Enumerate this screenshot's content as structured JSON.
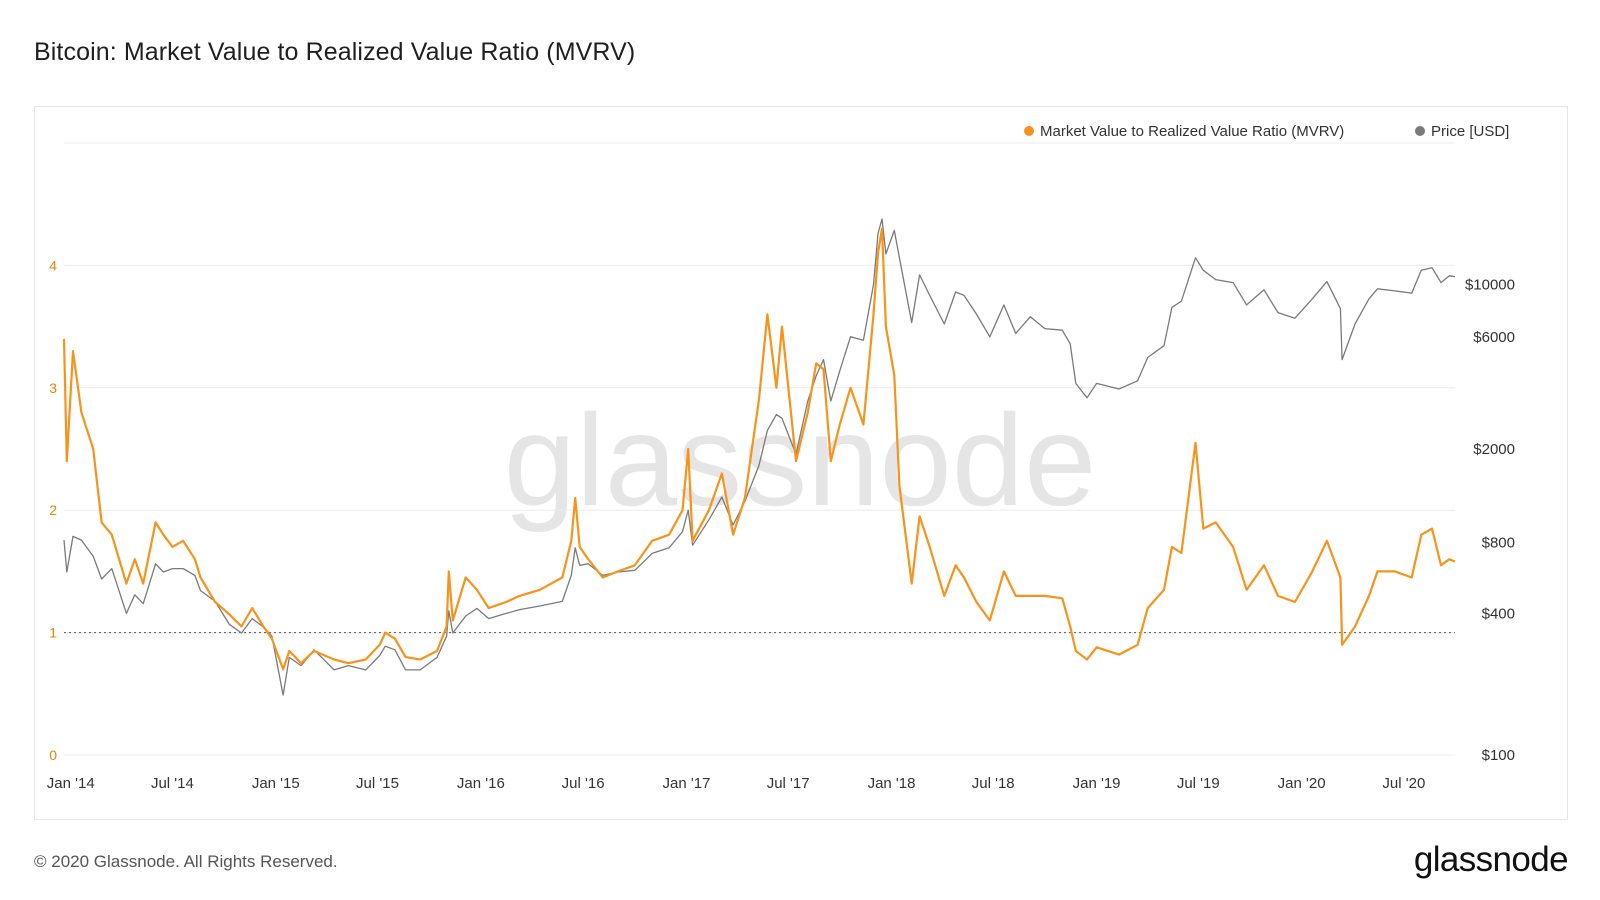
{
  "page": {
    "title": "Bitcoin: Market Value to Realized Value Ratio (MVRV)",
    "footer": "© 2020 Glassnode. All Rights Reserved.",
    "brand": "glassnode",
    "watermark": "glassnode"
  },
  "colors": {
    "mvrv": "#f7931a",
    "price": "#7a7a7a",
    "grid": "#ececec",
    "reference": "#555555"
  },
  "chart_data": {
    "type": "line",
    "title": "Bitcoin: Market Value to Realized Value Ratio (MVRV)",
    "legend_position": "top-right",
    "grid": true,
    "x_ticks": [
      "Jan '14",
      "Jul '14",
      "Jan '15",
      "Jul '15",
      "Jan '16",
      "Jul '16",
      "Jan '17",
      "Jul '17",
      "Jan '18",
      "Jul '18",
      "Jan '19",
      "Jul '19",
      "Jan '20",
      "Jul '20"
    ],
    "x_range": [
      "2013-12-20",
      "2020-09-30"
    ],
    "y_left": {
      "scale": "linear",
      "ylim": [
        0,
        5
      ],
      "ticks": [
        "0",
        "1",
        "2",
        "3",
        "4"
      ]
    },
    "y_right": {
      "scale": "log",
      "ylim": [
        100,
        40000
      ],
      "ticks": [
        {
          "value": 100,
          "label": "$100"
        },
        {
          "value": 400,
          "label": "$400"
        },
        {
          "value": 800,
          "label": "$800"
        },
        {
          "value": 2000,
          "label": "$2000"
        },
        {
          "value": 6000,
          "label": "$6000"
        },
        {
          "value": 10000,
          "label": "$10000"
        }
      ]
    },
    "reference_line": {
      "axis": "left",
      "value": 1
    },
    "series": [
      {
        "name": "Market Value to Realized Value Ratio (MVRV)",
        "axis": "left",
        "color": "#f7931a",
        "points": [
          [
            "2013-12-20",
            3.4
          ],
          [
            "2013-12-25",
            2.4
          ],
          [
            "2014-01-05",
            3.3
          ],
          [
            "2014-01-20",
            2.8
          ],
          [
            "2014-02-10",
            2.5
          ],
          [
            "2014-02-25",
            1.9
          ],
          [
            "2014-03-15",
            1.8
          ],
          [
            "2014-04-10",
            1.4
          ],
          [
            "2014-04-25",
            1.6
          ],
          [
            "2014-05-10",
            1.4
          ],
          [
            "2014-06-01",
            1.9
          ],
          [
            "2014-06-15",
            1.8
          ],
          [
            "2014-07-01",
            1.7
          ],
          [
            "2014-07-20",
            1.75
          ],
          [
            "2014-08-10",
            1.6
          ],
          [
            "2014-08-20",
            1.45
          ],
          [
            "2014-09-15",
            1.25
          ],
          [
            "2014-10-10",
            1.15
          ],
          [
            "2014-11-01",
            1.05
          ],
          [
            "2014-11-20",
            1.2
          ],
          [
            "2014-12-10",
            1.05
          ],
          [
            "2014-12-25",
            0.95
          ],
          [
            "2015-01-14",
            0.7
          ],
          [
            "2015-01-25",
            0.85
          ],
          [
            "2015-02-15",
            0.75
          ],
          [
            "2015-03-10",
            0.85
          ],
          [
            "2015-04-15",
            0.78
          ],
          [
            "2015-05-10",
            0.75
          ],
          [
            "2015-06-10",
            0.78
          ],
          [
            "2015-07-05",
            0.9
          ],
          [
            "2015-07-15",
            1.0
          ],
          [
            "2015-08-01",
            0.95
          ],
          [
            "2015-08-20",
            0.8
          ],
          [
            "2015-09-15",
            0.78
          ],
          [
            "2015-10-15",
            0.85
          ],
          [
            "2015-11-01",
            1.05
          ],
          [
            "2015-11-05",
            1.5
          ],
          [
            "2015-11-12",
            1.1
          ],
          [
            "2015-12-05",
            1.45
          ],
          [
            "2015-12-25",
            1.35
          ],
          [
            "2016-01-15",
            1.2
          ],
          [
            "2016-02-15",
            1.25
          ],
          [
            "2016-03-10",
            1.3
          ],
          [
            "2016-04-15",
            1.35
          ],
          [
            "2016-05-25",
            1.45
          ],
          [
            "2016-06-10",
            1.75
          ],
          [
            "2016-06-17",
            2.1
          ],
          [
            "2016-06-25",
            1.7
          ],
          [
            "2016-07-10",
            1.6
          ],
          [
            "2016-08-05",
            1.45
          ],
          [
            "2016-09-01",
            1.5
          ],
          [
            "2016-10-01",
            1.55
          ],
          [
            "2016-11-01",
            1.75
          ],
          [
            "2016-12-01",
            1.8
          ],
          [
            "2016-12-25",
            2.0
          ],
          [
            "2017-01-04",
            2.5
          ],
          [
            "2017-01-12",
            1.75
          ],
          [
            "2017-02-10",
            2.0
          ],
          [
            "2017-03-05",
            2.3
          ],
          [
            "2017-03-25",
            1.8
          ],
          [
            "2017-04-15",
            2.1
          ],
          [
            "2017-05-10",
            2.9
          ],
          [
            "2017-05-25",
            3.6
          ],
          [
            "2017-06-10",
            3.0
          ],
          [
            "2017-06-20",
            3.5
          ],
          [
            "2017-07-15",
            2.4
          ],
          [
            "2017-08-05",
            2.8
          ],
          [
            "2017-08-20",
            3.2
          ],
          [
            "2017-09-02",
            3.15
          ],
          [
            "2017-09-15",
            2.4
          ],
          [
            "2017-10-01",
            2.7
          ],
          [
            "2017-10-20",
            3.0
          ],
          [
            "2017-11-12",
            2.7
          ],
          [
            "2017-11-30",
            3.6
          ],
          [
            "2017-12-08",
            4.1
          ],
          [
            "2017-12-15",
            4.3
          ],
          [
            "2017-12-22",
            3.5
          ],
          [
            "2018-01-06",
            3.1
          ],
          [
            "2018-01-15",
            2.2
          ],
          [
            "2018-02-06",
            1.4
          ],
          [
            "2018-02-20",
            1.95
          ],
          [
            "2018-03-10",
            1.7
          ],
          [
            "2018-04-05",
            1.3
          ],
          [
            "2018-04-25",
            1.55
          ],
          [
            "2018-05-10",
            1.45
          ],
          [
            "2018-06-01",
            1.25
          ],
          [
            "2018-06-25",
            1.1
          ],
          [
            "2018-07-20",
            1.5
          ],
          [
            "2018-08-10",
            1.3
          ],
          [
            "2018-09-05",
            1.3
          ],
          [
            "2018-10-01",
            1.3
          ],
          [
            "2018-11-01",
            1.28
          ],
          [
            "2018-11-15",
            1.05
          ],
          [
            "2018-11-25",
            0.85
          ],
          [
            "2018-12-15",
            0.78
          ],
          [
            "2019-01-01",
            0.88
          ],
          [
            "2019-02-10",
            0.82
          ],
          [
            "2019-03-15",
            0.9
          ],
          [
            "2019-04-02",
            1.2
          ],
          [
            "2019-05-01",
            1.35
          ],
          [
            "2019-05-15",
            1.7
          ],
          [
            "2019-06-01",
            1.65
          ],
          [
            "2019-06-26",
            2.55
          ],
          [
            "2019-07-10",
            1.85
          ],
          [
            "2019-08-01",
            1.9
          ],
          [
            "2019-09-01",
            1.7
          ],
          [
            "2019-09-25",
            1.35
          ],
          [
            "2019-10-26",
            1.55
          ],
          [
            "2019-11-20",
            1.3
          ],
          [
            "2019-12-20",
            1.25
          ],
          [
            "2020-01-20",
            1.5
          ],
          [
            "2020-02-15",
            1.75
          ],
          [
            "2020-03-10",
            1.45
          ],
          [
            "2020-03-13",
            0.9
          ],
          [
            "2020-04-05",
            1.05
          ],
          [
            "2020-04-30",
            1.3
          ],
          [
            "2020-05-15",
            1.5
          ],
          [
            "2020-06-15",
            1.5
          ],
          [
            "2020-07-15",
            1.45
          ],
          [
            "2020-08-01",
            1.8
          ],
          [
            "2020-08-20",
            1.85
          ],
          [
            "2020-09-05",
            1.55
          ],
          [
            "2020-09-20",
            1.6
          ],
          [
            "2020-09-30",
            1.58
          ]
        ]
      },
      {
        "name": "Price [USD]",
        "axis": "right",
        "color": "#7a7a7a",
        "points": [
          [
            "2013-12-20",
            820
          ],
          [
            "2013-12-25",
            600
          ],
          [
            "2014-01-05",
            850
          ],
          [
            "2014-01-20",
            820
          ],
          [
            "2014-02-10",
            700
          ],
          [
            "2014-02-25",
            560
          ],
          [
            "2014-03-15",
            620
          ],
          [
            "2014-04-10",
            400
          ],
          [
            "2014-04-25",
            480
          ],
          [
            "2014-05-10",
            440
          ],
          [
            "2014-06-01",
            650
          ],
          [
            "2014-06-15",
            600
          ],
          [
            "2014-07-01",
            620
          ],
          [
            "2014-07-20",
            620
          ],
          [
            "2014-08-10",
            580
          ],
          [
            "2014-08-20",
            500
          ],
          [
            "2014-09-15",
            450
          ],
          [
            "2014-10-10",
            360
          ],
          [
            "2014-11-01",
            330
          ],
          [
            "2014-11-20",
            380
          ],
          [
            "2014-12-10",
            350
          ],
          [
            "2014-12-25",
            320
          ],
          [
            "2015-01-14",
            180
          ],
          [
            "2015-01-25",
            260
          ],
          [
            "2015-02-15",
            240
          ],
          [
            "2015-03-10",
            280
          ],
          [
            "2015-04-15",
            230
          ],
          [
            "2015-05-10",
            240
          ],
          [
            "2015-06-10",
            230
          ],
          [
            "2015-07-05",
            265
          ],
          [
            "2015-07-15",
            290
          ],
          [
            "2015-08-01",
            280
          ],
          [
            "2015-08-20",
            230
          ],
          [
            "2015-09-15",
            230
          ],
          [
            "2015-10-15",
            260
          ],
          [
            "2015-11-01",
            320
          ],
          [
            "2015-11-05",
            410
          ],
          [
            "2015-11-12",
            330
          ],
          [
            "2015-12-05",
            390
          ],
          [
            "2015-12-25",
            420
          ],
          [
            "2016-01-15",
            380
          ],
          [
            "2016-02-15",
            400
          ],
          [
            "2016-03-10",
            415
          ],
          [
            "2016-04-15",
            430
          ],
          [
            "2016-05-25",
            450
          ],
          [
            "2016-06-10",
            580
          ],
          [
            "2016-06-17",
            760
          ],
          [
            "2016-06-25",
            640
          ],
          [
            "2016-07-10",
            650
          ],
          [
            "2016-08-05",
            580
          ],
          [
            "2016-09-01",
            600
          ],
          [
            "2016-10-01",
            610
          ],
          [
            "2016-11-01",
            720
          ],
          [
            "2016-12-01",
            760
          ],
          [
            "2016-12-25",
            890
          ],
          [
            "2017-01-04",
            1100
          ],
          [
            "2017-01-12",
            780
          ],
          [
            "2017-02-10",
            1000
          ],
          [
            "2017-03-05",
            1250
          ],
          [
            "2017-03-25",
            950
          ],
          [
            "2017-04-15",
            1200
          ],
          [
            "2017-05-10",
            1700
          ],
          [
            "2017-05-25",
            2400
          ],
          [
            "2017-06-10",
            2800
          ],
          [
            "2017-06-20",
            2700
          ],
          [
            "2017-07-15",
            1900
          ],
          [
            "2017-08-05",
            3200
          ],
          [
            "2017-08-20",
            4100
          ],
          [
            "2017-09-02",
            4800
          ],
          [
            "2017-09-15",
            3200
          ],
          [
            "2017-10-01",
            4300
          ],
          [
            "2017-10-20",
            6000
          ],
          [
            "2017-11-12",
            5800
          ],
          [
            "2017-11-30",
            10000
          ],
          [
            "2017-12-08",
            16500
          ],
          [
            "2017-12-15",
            19000
          ],
          [
            "2017-12-22",
            13500
          ],
          [
            "2018-01-06",
            17000
          ],
          [
            "2018-01-15",
            13000
          ],
          [
            "2018-02-06",
            6900
          ],
          [
            "2018-02-20",
            11000
          ],
          [
            "2018-03-10",
            9000
          ],
          [
            "2018-04-05",
            6800
          ],
          [
            "2018-04-25",
            9300
          ],
          [
            "2018-05-10",
            9000
          ],
          [
            "2018-06-01",
            7500
          ],
          [
            "2018-06-25",
            6000
          ],
          [
            "2018-07-20",
            8200
          ],
          [
            "2018-08-10",
            6200
          ],
          [
            "2018-09-05",
            7300
          ],
          [
            "2018-10-01",
            6500
          ],
          [
            "2018-11-01",
            6400
          ],
          [
            "2018-11-15",
            5600
          ],
          [
            "2018-11-25",
            3800
          ],
          [
            "2018-12-15",
            3300
          ],
          [
            "2019-01-01",
            3800
          ],
          [
            "2019-02-10",
            3600
          ],
          [
            "2019-03-15",
            3900
          ],
          [
            "2019-04-02",
            4900
          ],
          [
            "2019-05-01",
            5500
          ],
          [
            "2019-05-15",
            8000
          ],
          [
            "2019-06-01",
            8500
          ],
          [
            "2019-06-26",
            13000
          ],
          [
            "2019-07-10",
            11500
          ],
          [
            "2019-08-01",
            10500
          ],
          [
            "2019-09-01",
            10200
          ],
          [
            "2019-09-25",
            8200
          ],
          [
            "2019-10-26",
            9500
          ],
          [
            "2019-11-20",
            7600
          ],
          [
            "2019-12-20",
            7200
          ],
          [
            "2020-01-20",
            8700
          ],
          [
            "2020-02-15",
            10300
          ],
          [
            "2020-03-10",
            7900
          ],
          [
            "2020-03-13",
            4800
          ],
          [
            "2020-04-05",
            6800
          ],
          [
            "2020-04-30",
            8700
          ],
          [
            "2020-05-15",
            9600
          ],
          [
            "2020-06-15",
            9400
          ],
          [
            "2020-07-15",
            9200
          ],
          [
            "2020-08-01",
            11500
          ],
          [
            "2020-08-20",
            11800
          ],
          [
            "2020-09-05",
            10200
          ],
          [
            "2020-09-20",
            10900
          ],
          [
            "2020-09-30",
            10800
          ]
        ]
      }
    ]
  }
}
